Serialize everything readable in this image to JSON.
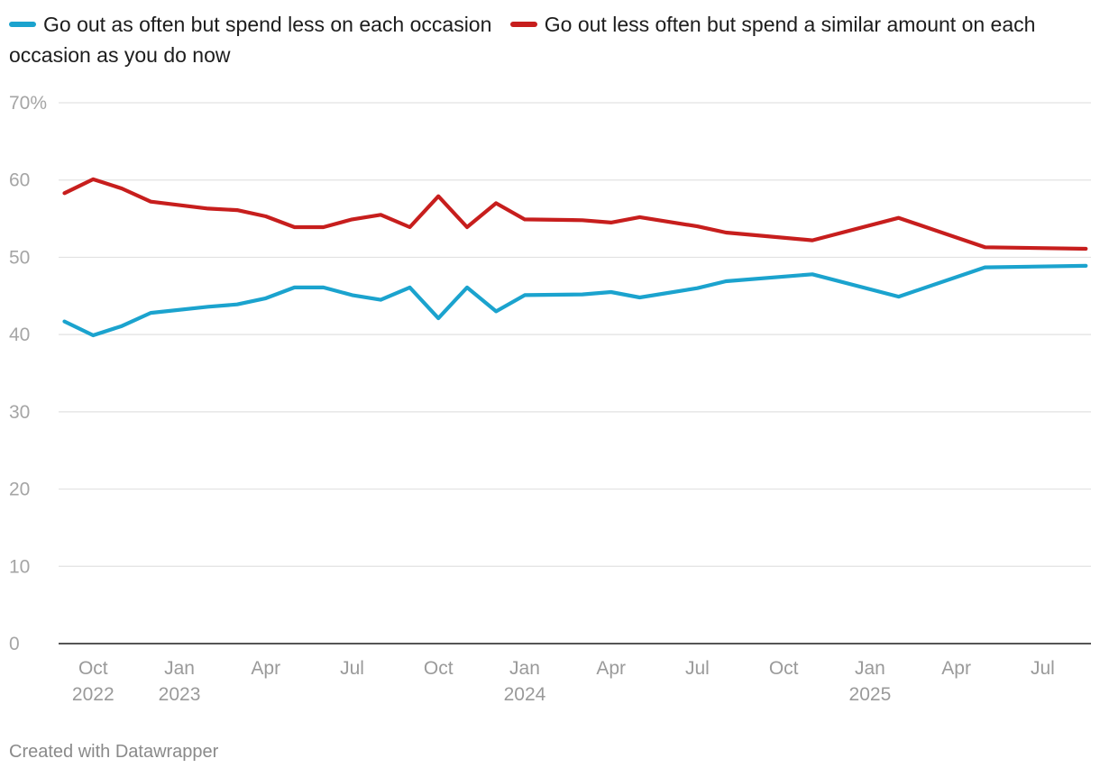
{
  "chart_data": {
    "type": "line",
    "title": "",
    "xlabel": "",
    "ylabel": "",
    "ylim": [
      0,
      70
    ],
    "yticks": [
      0,
      10,
      20,
      30,
      40,
      50,
      60,
      70
    ],
    "ytick_labels": [
      "0",
      "10",
      "20",
      "30",
      "40",
      "50",
      "60",
      "70%"
    ],
    "xlim": [
      2022.65,
      2025.64
    ],
    "xticks": [
      {
        "x": 2022.75,
        "label": "Oct",
        "sublabel": "2022"
      },
      {
        "x": 2023.0,
        "label": "Jan",
        "sublabel": "2023"
      },
      {
        "x": 2023.25,
        "label": "Apr",
        "sublabel": ""
      },
      {
        "x": 2023.5,
        "label": "Jul",
        "sublabel": ""
      },
      {
        "x": 2023.75,
        "label": "Oct",
        "sublabel": ""
      },
      {
        "x": 2024.0,
        "label": "Jan",
        "sublabel": "2024"
      },
      {
        "x": 2024.25,
        "label": "Apr",
        "sublabel": ""
      },
      {
        "x": 2024.5,
        "label": "Jul",
        "sublabel": ""
      },
      {
        "x": 2024.75,
        "label": "Oct",
        "sublabel": ""
      },
      {
        "x": 2025.0,
        "label": "Jan",
        "sublabel": "2025"
      },
      {
        "x": 2025.25,
        "label": "Apr",
        "sublabel": ""
      },
      {
        "x": 2025.5,
        "label": "Jul",
        "sublabel": ""
      }
    ],
    "series": [
      {
        "name": "Go out as often but spend less on each occasion",
        "color": "#1ba3ce",
        "points": [
          [
            2022.667,
            41.7
          ],
          [
            2022.75,
            39.9
          ],
          [
            2022.833,
            41.1
          ],
          [
            2022.917,
            42.8
          ],
          [
            2023.083,
            43.6
          ],
          [
            2023.167,
            43.9
          ],
          [
            2023.25,
            44.7
          ],
          [
            2023.333,
            46.1
          ],
          [
            2023.417,
            46.1
          ],
          [
            2023.5,
            45.1
          ],
          [
            2023.583,
            44.5
          ],
          [
            2023.667,
            46.1
          ],
          [
            2023.75,
            42.1
          ],
          [
            2023.833,
            46.1
          ],
          [
            2023.917,
            43.0
          ],
          [
            2024.0,
            45.1
          ],
          [
            2024.167,
            45.2
          ],
          [
            2024.25,
            45.5
          ],
          [
            2024.333,
            44.8
          ],
          [
            2024.5,
            46.0
          ],
          [
            2024.583,
            46.9
          ],
          [
            2024.833,
            47.8
          ],
          [
            2025.083,
            44.9
          ],
          [
            2025.333,
            48.7
          ],
          [
            2025.625,
            48.9
          ]
        ]
      },
      {
        "name": "Go out less often but spend a similar amount on each occasion as you do now",
        "color": "#c71e1d",
        "points": [
          [
            2022.667,
            58.3
          ],
          [
            2022.75,
            60.1
          ],
          [
            2022.833,
            58.9
          ],
          [
            2022.917,
            57.2
          ],
          [
            2023.083,
            56.3
          ],
          [
            2023.167,
            56.1
          ],
          [
            2023.25,
            55.3
          ],
          [
            2023.333,
            53.9
          ],
          [
            2023.417,
            53.9
          ],
          [
            2023.5,
            54.9
          ],
          [
            2023.583,
            55.5
          ],
          [
            2023.667,
            53.9
          ],
          [
            2023.75,
            57.9
          ],
          [
            2023.833,
            53.9
          ],
          [
            2023.917,
            57.0
          ],
          [
            2024.0,
            54.9
          ],
          [
            2024.167,
            54.8
          ],
          [
            2024.25,
            54.5
          ],
          [
            2024.333,
            55.2
          ],
          [
            2024.5,
            54.0
          ],
          [
            2024.583,
            53.2
          ],
          [
            2024.833,
            52.2
          ],
          [
            2025.083,
            55.1
          ],
          [
            2025.333,
            51.3
          ],
          [
            2025.625,
            51.1
          ]
        ]
      }
    ]
  },
  "footer": {
    "credit": "Created with Datawrapper"
  }
}
